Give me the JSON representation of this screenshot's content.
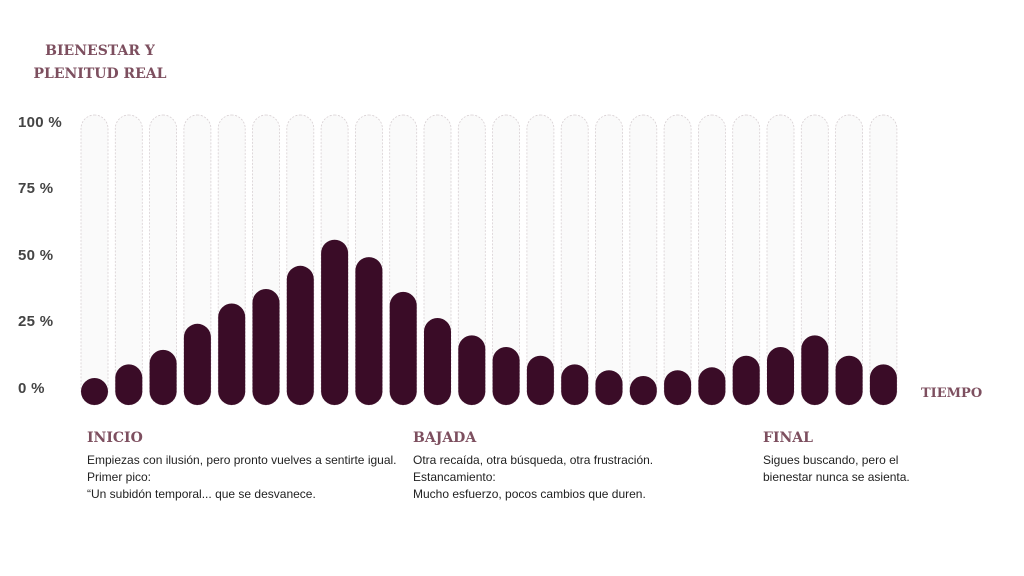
{
  "chart_data": {
    "type": "bar",
    "title": "BIENESTAR Y PLENITUD REAL",
    "title_lines": [
      "BIENESTAR Y",
      "PLENITUD REAL"
    ],
    "xlabel": "TIEMPO",
    "ylabel": "BIENESTAR Y PLENITUD REAL",
    "ylim": [
      0,
      100
    ],
    "yticks": [
      "100 %",
      "75 %",
      "50 %",
      "25 %",
      "0 %"
    ],
    "grid": false,
    "values": [
      9,
      14,
      19,
      28,
      35,
      40,
      48,
      57,
      51,
      39,
      30,
      24,
      20,
      17,
      14,
      12,
      10,
      12,
      13,
      17,
      20,
      24,
      17,
      14
    ],
    "colors": {
      "bar": "#3a0c27",
      "track": "#fafafa",
      "track_border": "#d8d0d3",
      "accent": "#7d4f5f"
    }
  },
  "annotations": [
    {
      "title": "INICIO",
      "lines": [
        "Empiezas con ilusión, pero pronto vuelves a sentirte igual.",
        "Primer pico:",
        "“Un subidón temporal... que se desvanece."
      ]
    },
    {
      "title": "BAJADA",
      "lines": [
        "Otra recaída, otra búsqueda, otra frustración.",
        "Estancamiento:",
        "Mucho esfuerzo, pocos cambios que duren."
      ]
    },
    {
      "title": "FINAL",
      "lines": [
        "Sigues buscando, pero el",
        "bienestar nunca se asienta."
      ]
    }
  ]
}
